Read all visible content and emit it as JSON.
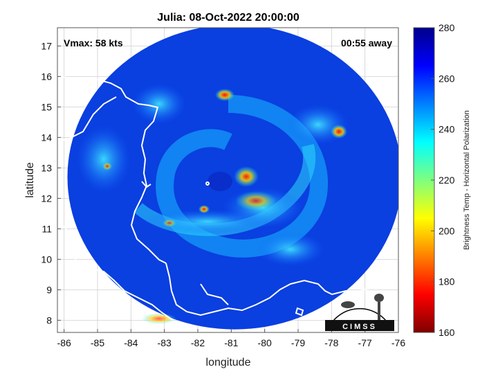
{
  "title": "Julia: 08-Oct-2022 20:00:00",
  "vmax_label": "Vmax: 58 kts",
  "time_away_label": "00:55 away",
  "xlabel": "longitude",
  "ylabel": "latitude",
  "colorbar_label": "Brightness Temp - Horizontal Polarization",
  "logo_text": "CIMSS",
  "chart_data": {
    "type": "heatmap",
    "xlim": [
      -86.2,
      -76.0
    ],
    "ylim": [
      7.6,
      17.6
    ],
    "x_ticks": [
      -86,
      -85,
      -84,
      -83,
      -82,
      -81,
      -80,
      -79,
      -78,
      -77,
      -76
    ],
    "y_ticks": [
      8,
      9,
      10,
      11,
      12,
      13,
      14,
      15,
      16,
      17
    ],
    "x_tick_labels": [
      "-86",
      "-85",
      "-84",
      "-83",
      "-82",
      "-81",
      "-80",
      "-79",
      "-78",
      "-77",
      "-76"
    ],
    "y_tick_labels": [
      "8",
      "9",
      "10",
      "11",
      "12",
      "13",
      "14",
      "15",
      "16",
      "17"
    ],
    "grid": true,
    "storm_center": [
      -80.9,
      12.7
    ],
    "swath_radius_deg": 5.0,
    "colorbar": {
      "range": [
        160,
        280
      ],
      "ticks": [
        160,
        180,
        200,
        220,
        240,
        260,
        280
      ],
      "tick_labels": [
        "160",
        "180",
        "200",
        "220",
        "240",
        "260",
        "280"
      ],
      "colormap": "jet"
    }
  },
  "colors": {
    "background": "#0a3fe0",
    "coastline": "#ffffff",
    "grid": "#d0d0d0"
  }
}
